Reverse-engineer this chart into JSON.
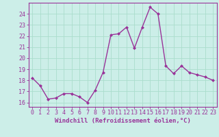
{
  "x": [
    0,
    1,
    2,
    3,
    4,
    5,
    6,
    7,
    8,
    9,
    10,
    11,
    12,
    13,
    14,
    15,
    16,
    17,
    18,
    19,
    20,
    21,
    22,
    23
  ],
  "y": [
    18.2,
    17.5,
    16.3,
    16.4,
    16.8,
    16.8,
    16.5,
    16.0,
    17.1,
    18.7,
    22.1,
    22.2,
    22.8,
    20.9,
    22.8,
    24.6,
    24.0,
    19.3,
    18.6,
    19.3,
    18.7,
    18.5,
    18.3,
    18.0
  ],
  "line_color": "#993399",
  "marker": "D",
  "marker_size": 2.0,
  "bg_color": "#cceee8",
  "grid_color": "#aaddcc",
  "xlabel": "Windchill (Refroidissement éolien,°C)",
  "xlabel_fontsize": 6.5,
  "xtick_labels": [
    "0",
    "1",
    "2",
    "3",
    "4",
    "5",
    "6",
    "7",
    "8",
    "9",
    "10",
    "11",
    "12",
    "13",
    "14",
    "15",
    "16",
    "17",
    "18",
    "19",
    "20",
    "21",
    "22",
    "23"
  ],
  "ytick_min": 16,
  "ytick_max": 24,
  "ytick_step": 1,
  "ylim": [
    15.6,
    25.0
  ],
  "xlim": [
    -0.5,
    23.5
  ],
  "tick_fontsize": 6.0,
  "linewidth": 1.0
}
